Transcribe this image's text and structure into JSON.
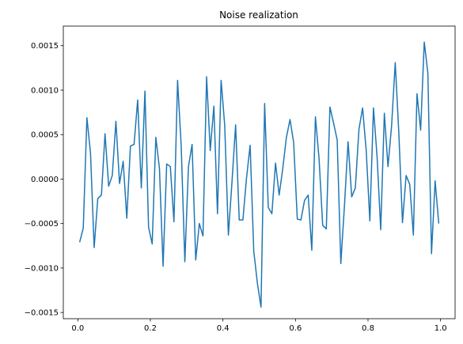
{
  "chart_data": {
    "type": "line",
    "title": "Noise realization",
    "xlabel": "",
    "ylabel": "",
    "xlim": [
      -0.04,
      1.04
    ],
    "ylim": [
      -0.00157,
      0.00172
    ],
    "grid": false,
    "x_ticks": [
      0.0,
      0.2,
      0.4,
      0.6,
      0.8,
      1.0
    ],
    "x_tick_labels": [
      "0.0",
      "0.2",
      "0.4",
      "0.6",
      "0.8",
      "1.0"
    ],
    "y_ticks": [
      -0.0015,
      -0.001,
      -0.0005,
      0.0,
      0.0005,
      0.001,
      0.0015
    ],
    "y_tick_labels": [
      "−0.0015",
      "−0.0010",
      "−0.0005",
      "0.0000",
      "0.0005",
      "0.0010",
      "0.0015"
    ],
    "series": [
      {
        "color": "#1f77b4",
        "x": [
          0.005,
          0.015,
          0.025,
          0.035,
          0.045,
          0.055,
          0.065,
          0.075,
          0.085,
          0.095,
          0.105,
          0.115,
          0.125,
          0.135,
          0.145,
          0.155,
          0.165,
          0.175,
          0.185,
          0.195,
          0.205,
          0.215,
          0.225,
          0.235,
          0.245,
          0.255,
          0.265,
          0.275,
          0.285,
          0.295,
          0.305,
          0.315,
          0.325,
          0.335,
          0.345,
          0.355,
          0.365,
          0.375,
          0.385,
          0.395,
          0.405,
          0.415,
          0.425,
          0.435,
          0.445,
          0.455,
          0.465,
          0.475,
          0.485,
          0.495,
          0.505,
          0.515,
          0.525,
          0.535,
          0.545,
          0.555,
          0.565,
          0.575,
          0.585,
          0.595,
          0.605,
          0.615,
          0.625,
          0.635,
          0.645,
          0.655,
          0.665,
          0.675,
          0.685,
          0.695,
          0.705,
          0.715,
          0.725,
          0.735,
          0.745,
          0.755,
          0.765,
          0.775,
          0.785,
          0.795,
          0.805,
          0.815,
          0.825,
          0.835,
          0.845,
          0.855,
          0.865,
          0.875,
          0.885,
          0.895,
          0.905,
          0.915,
          0.925,
          0.935,
          0.945,
          0.955,
          0.965,
          0.975,
          0.985,
          0.995
        ],
        "values": [
          -0.00071,
          -0.00055,
          0.00069,
          0.00029,
          -0.00077,
          -0.00022,
          -0.00018,
          0.00051,
          -8e-05,
          4e-05,
          0.00065,
          -5e-05,
          0.0002,
          -0.00044,
          0.00037,
          0.00039,
          0.00089,
          -0.0001,
          0.00099,
          -0.00054,
          -0.00073,
          0.00047,
          0.00012,
          -0.00098,
          0.00017,
          0.00014,
          -0.00048,
          0.00111,
          0.00037,
          -0.00093,
          0.00014,
          0.00039,
          -0.00091,
          -0.0005,
          -0.00064,
          0.00115,
          0.00032,
          0.00082,
          -0.00039,
          0.00111,
          0.0006,
          -0.00063,
          -3e-05,
          0.00061,
          -0.00046,
          -0.00046,
          1e-05,
          0.00038,
          -0.00081,
          -0.00117,
          -0.00144,
          0.00085,
          -0.00032,
          -0.00039,
          0.00018,
          -0.00018,
          0.00012,
          0.00047,
          0.00067,
          0.00041,
          -0.00045,
          -0.00046,
          -0.00024,
          -0.00018,
          -0.0008,
          0.0007,
          0.00023,
          -0.00052,
          -0.00056,
          0.00081,
          0.00063,
          0.00044,
          -0.00095,
          -0.0003,
          0.00042,
          -0.0002,
          -0.0001,
          0.00056,
          0.0008,
          0.00032,
          -0.00047,
          0.0008,
          0.00025,
          -0.00057,
          0.00074,
          0.00014,
          0.0006,
          0.00131,
          0.00051,
          -0.00049,
          4e-05,
          -6e-05,
          -0.00063,
          0.00096,
          0.00055,
          0.00154,
          0.00119,
          -0.00084,
          -2e-05,
          -0.0005
        ]
      }
    ]
  }
}
